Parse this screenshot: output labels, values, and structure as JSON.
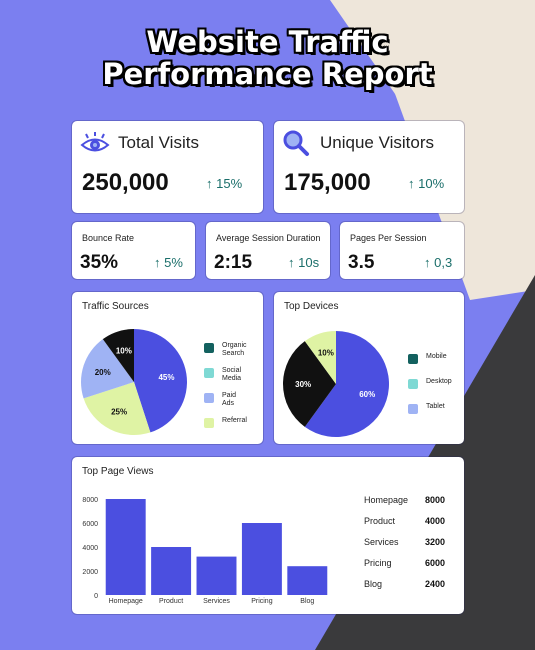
{
  "title_line1": "Website Traffic",
  "title_line2": "Performance Report",
  "colors": {
    "accent": "#4b4fe0",
    "teal_dark": "#13615f",
    "teal_light": "#7fd9d4",
    "periwinkle": "#9fb3f4",
    "lime": "#dff3a4",
    "black": "#111111",
    "up_arrow": "#1a6e6a"
  },
  "metrics": {
    "total_visits": {
      "label": "Total Visits",
      "value": "250,000",
      "change": "↑ 15%",
      "icon": "eye-icon"
    },
    "unique_visitors": {
      "label": "Unique Visitors",
      "value": "175,000",
      "change": "↑ 10%",
      "icon": "magnifier-icon"
    },
    "bounce_rate": {
      "label": "Bounce Rate",
      "value": "35%",
      "change": "↑ 5%"
    },
    "avg_session": {
      "label": "Average Session Duration",
      "value": "2:15",
      "change": "↑ 10s"
    },
    "pages_per_session": {
      "label": "Pages Per Session",
      "value": "3.5",
      "change": "↑ 0,3"
    }
  },
  "chart_data": [
    {
      "type": "pie",
      "title": "Traffic Sources",
      "legend_position": "right",
      "slices": [
        {
          "label": "Organic Search",
          "value": 45,
          "display": "45%",
          "color": "#4b4fe0"
        },
        {
          "label": "Social Media",
          "value": 25,
          "display": "25%",
          "color": "#dff3a4"
        },
        {
          "label": "Paid Ads",
          "value": 20,
          "display": "20%",
          "color": "#9fb3f4"
        },
        {
          "label": "Referral",
          "value": 10,
          "display": "10%",
          "color": "#111111"
        }
      ],
      "legend": [
        {
          "line1": "Organic",
          "line2": "Search",
          "color": "#13615f"
        },
        {
          "line1": "Social",
          "line2": "Media",
          "color": "#7fd9d4"
        },
        {
          "line1": "Paid",
          "line2": "Ads",
          "color": "#9fb3f4"
        },
        {
          "line1": "Referral",
          "line2": "",
          "color": "#dff3a4"
        }
      ]
    },
    {
      "type": "pie",
      "title": "Top Devices",
      "legend_position": "right",
      "slices": [
        {
          "label": "Mobile",
          "value": 60,
          "display": "60%",
          "color": "#4b4fe0"
        },
        {
          "label": "Desktop",
          "value": 30,
          "display": "30%",
          "color": "#111111"
        },
        {
          "label": "Tablet",
          "value": 10,
          "display": "10%",
          "color": "#dff3a4"
        }
      ],
      "legend": [
        {
          "line1": "Mobile",
          "line2": "",
          "color": "#13615f"
        },
        {
          "line1": "Desktop",
          "line2": "",
          "color": "#7fd9d4"
        },
        {
          "line1": "Tablet",
          "line2": "",
          "color": "#9fb3f4"
        }
      ]
    },
    {
      "type": "bar",
      "title": "Top Page Views",
      "categories": [
        "Homepage",
        "Product",
        "Services",
        "Pricing",
        "Blog"
      ],
      "values": [
        8000,
        4000,
        3200,
        6000,
        2400
      ],
      "ylim": [
        0,
        8000
      ],
      "yticks": [
        0,
        2000,
        4000,
        6000,
        8000
      ],
      "grid": false,
      "bar_color": "#4b4fe0",
      "table": [
        {
          "page": "Homepage",
          "views": "8000"
        },
        {
          "page": "Product",
          "views": "4000"
        },
        {
          "page": "Services",
          "views": "3200"
        },
        {
          "page": "Pricing",
          "views": "6000"
        },
        {
          "page": "Blog",
          "views": "2400"
        }
      ]
    }
  ]
}
